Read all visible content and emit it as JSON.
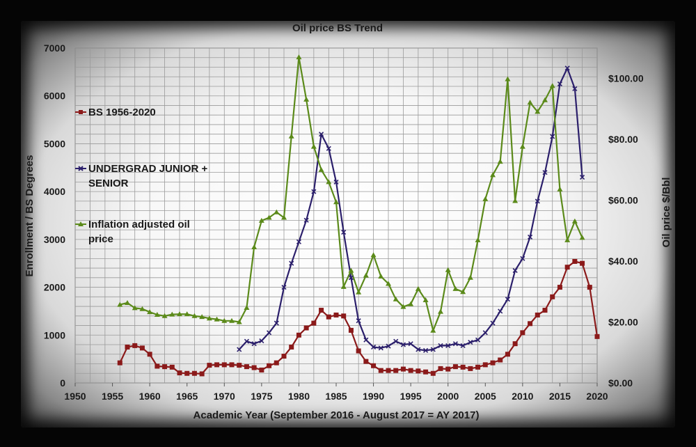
{
  "chart_data": {
    "type": "line",
    "title": "Oil price BS Trend",
    "xlabel": "Academic Year (September 2016 - August 2017 = AY 2017)",
    "ylabel": "Enrollment / BS Degrees",
    "y2label": "Oil price $/Bbl",
    "xlim": [
      1950,
      2020
    ],
    "ylim": [
      0,
      7000
    ],
    "y2lim": [
      0,
      110
    ],
    "x_ticks": [
      "1950",
      "1955",
      "1960",
      "1965",
      "1970",
      "1975",
      "1980",
      "1985",
      "1990",
      "1995",
      "2000",
      "2005",
      "2010",
      "2015",
      "2020"
    ],
    "y_ticks": [
      "0",
      "1000",
      "2000",
      "3000",
      "4000",
      "5000",
      "6000",
      "7000"
    ],
    "y2_ticks": [
      "$0.00",
      "$20.00",
      "$40.00",
      "$60.00",
      "$80.00",
      "$100.00"
    ],
    "grid": true,
    "legend_position": "left",
    "series": [
      {
        "name": "BS 1956-2020",
        "axis": "left",
        "marker": "square",
        "color": "#8b1a1a",
        "x": [
          1956,
          1957,
          1958,
          1959,
          1960,
          1961,
          1962,
          1963,
          1964,
          1965,
          1966,
          1967,
          1968,
          1969,
          1970,
          1971,
          1972,
          1973,
          1974,
          1975,
          1976,
          1977,
          1978,
          1979,
          1980,
          1981,
          1982,
          1983,
          1984,
          1985,
          1986,
          1987,
          1988,
          1989,
          1990,
          1991,
          1992,
          1993,
          1994,
          1995,
          1996,
          1997,
          1998,
          1999,
          2000,
          2001,
          2002,
          2003,
          2004,
          2005,
          2006,
          2007,
          2008,
          2009,
          2010,
          2011,
          2012,
          2013,
          2014,
          2015,
          2016,
          2017,
          2018,
          2019,
          2020
        ],
        "values": [
          420,
          750,
          780,
          730,
          600,
          350,
          340,
          330,
          210,
          200,
          200,
          190,
          370,
          380,
          380,
          380,
          370,
          340,
          320,
          270,
          360,
          420,
          560,
          750,
          1000,
          1150,
          1250,
          1520,
          1380,
          1420,
          1400,
          1100,
          670,
          450,
          360,
          260,
          260,
          260,
          290,
          260,
          250,
          230,
          200,
          300,
          290,
          340,
          330,
          300,
          330,
          380,
          420,
          480,
          600,
          820,
          1050,
          1240,
          1420,
          1520,
          1800,
          2000,
          2420,
          2540,
          2500,
          2000,
          970
        ]
      },
      {
        "name": "UNDERGRAD JUNIOR + SENIOR",
        "axis": "left",
        "marker": "x",
        "color": "#2b1f6b",
        "x": [
          1972,
          1973,
          1974,
          1975,
          1976,
          1977,
          1978,
          1979,
          1980,
          1981,
          1982,
          1983,
          1984,
          1985,
          1986,
          1987,
          1988,
          1989,
          1990,
          1991,
          1992,
          1993,
          1994,
          1995,
          1996,
          1997,
          1998,
          1999,
          2000,
          2001,
          2002,
          2003,
          2004,
          2005,
          2006,
          2007,
          2008,
          2009,
          2010,
          2011,
          2012,
          2013,
          2014,
          2015,
          2016,
          2017,
          2018
        ],
        "values": [
          700,
          870,
          820,
          880,
          1050,
          1250,
          2000,
          2500,
          2950,
          3400,
          4000,
          5200,
          4900,
          4200,
          3150,
          2200,
          1300,
          900,
          750,
          730,
          770,
          870,
          800,
          820,
          700,
          680,
          700,
          780,
          780,
          820,
          780,
          850,
          900,
          1050,
          1250,
          1500,
          1750,
          2350,
          2600,
          3050,
          3800,
          4400,
          5150,
          6250,
          6580,
          6150,
          4300
        ]
      },
      {
        "name": "Inflation adjusted oil price",
        "axis": "right",
        "marker": "triangle",
        "color": "#5b8a1a",
        "x": [
          1956,
          1957,
          1958,
          1959,
          1960,
          1961,
          1962,
          1963,
          1964,
          1965,
          1966,
          1967,
          1968,
          1969,
          1970,
          1971,
          1972,
          1973,
          1974,
          1975,
          1976,
          1977,
          1978,
          1979,
          1980,
          1981,
          1982,
          1983,
          1984,
          1985,
          1986,
          1987,
          1988,
          1989,
          1990,
          1991,
          1992,
          1993,
          1994,
          1995,
          1996,
          1997,
          1998,
          1999,
          2000,
          2001,
          2002,
          2003,
          2004,
          2005,
          2006,
          2007,
          2008,
          2009,
          2010,
          2011,
          2012,
          2013,
          2014,
          2015,
          2016,
          2017,
          2018
        ],
        "values": [
          25.7,
          26.3,
          24.6,
          24.3,
          23.3,
          22.4,
          22.0,
          22.5,
          22.6,
          22.6,
          22.0,
          21.7,
          21.2,
          20.9,
          20.4,
          20.4,
          20.0,
          24.7,
          44.6,
          53.3,
          54.3,
          56.1,
          54.3,
          81.0,
          107.0,
          93.1,
          77.6,
          70.0,
          66.0,
          59.4,
          31.6,
          36.9,
          29.8,
          35.3,
          42.0,
          35.0,
          32.6,
          27.5,
          25.0,
          25.9,
          30.9,
          27.2,
          17.2,
          23.4,
          37.1,
          30.9,
          29.9,
          34.6,
          46.9,
          60.4,
          68.3,
          72.7,
          99.8,
          59.8,
          77.6,
          92.1,
          89.1,
          92.9,
          97.6,
          63.6,
          46.9,
          53.1,
          47.7
        ]
      }
    ]
  }
}
